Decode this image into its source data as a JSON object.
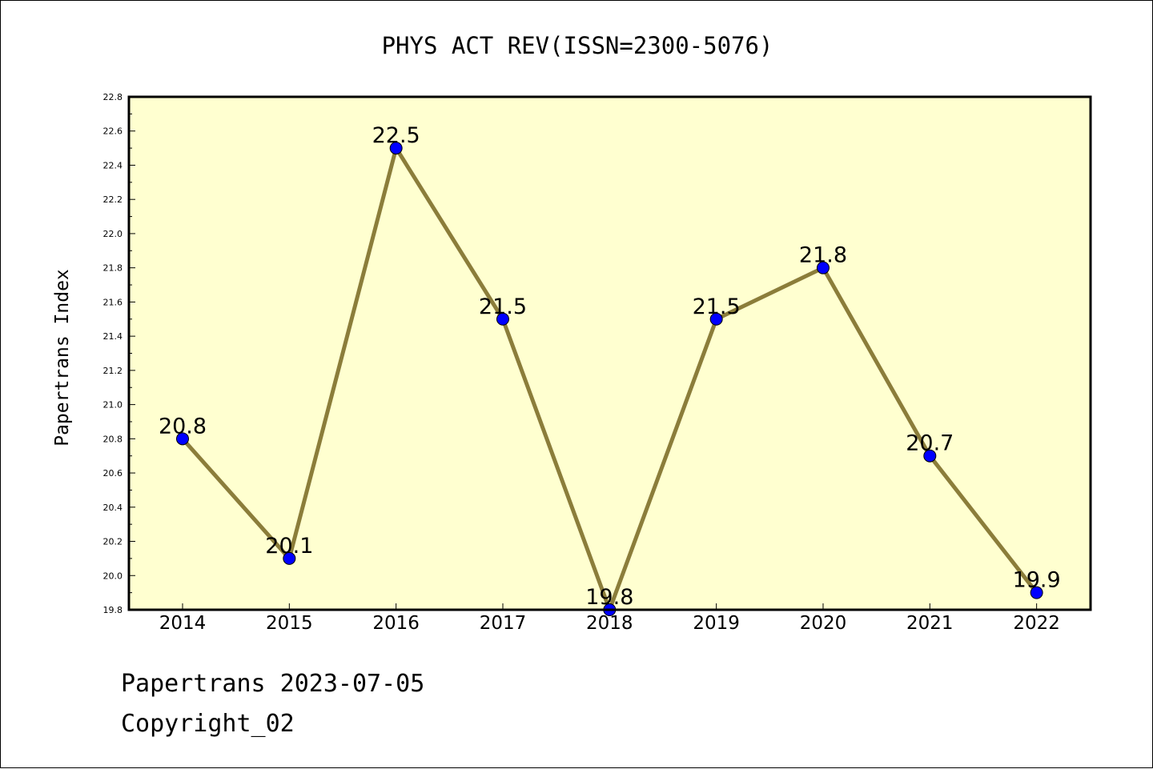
{
  "chart_data": {
    "type": "line",
    "title": "PHYS ACT REV(ISSN=2300-5076)",
    "xlabel": "",
    "ylabel": "Papertrans Index",
    "categories": [
      "2014",
      "2015",
      "2016",
      "2017",
      "2018",
      "2019",
      "2020",
      "2021",
      "2022"
    ],
    "series": [
      {
        "values": [
          20.8,
          20.1,
          22.5,
          21.5,
          19.8,
          21.5,
          21.8,
          20.7,
          19.9
        ],
        "data_labels": [
          "20.8",
          "20.1",
          "22.5",
          "21.5",
          "19.8",
          "21.5",
          "21.8",
          "20.7",
          "19.9"
        ]
      }
    ],
    "ylim": [
      19.8,
      22.8
    ],
    "yticks": [
      "19.8",
      "20.0",
      "20.2",
      "20.4",
      "20.6",
      "20.8",
      "21.0",
      "21.2",
      "21.4",
      "21.6",
      "21.8",
      "22.0",
      "22.2",
      "22.4",
      "22.6",
      "22.8"
    ],
    "grid": false,
    "legend": "none",
    "colors": {
      "plot_background": "#ffffd0",
      "line": "#8b7d3a",
      "marker": "#0000ff",
      "marker_edge": "#000000"
    }
  },
  "footer": {
    "date_line": "Papertrans 2023-07-05",
    "copyright": "Copyright_02"
  }
}
